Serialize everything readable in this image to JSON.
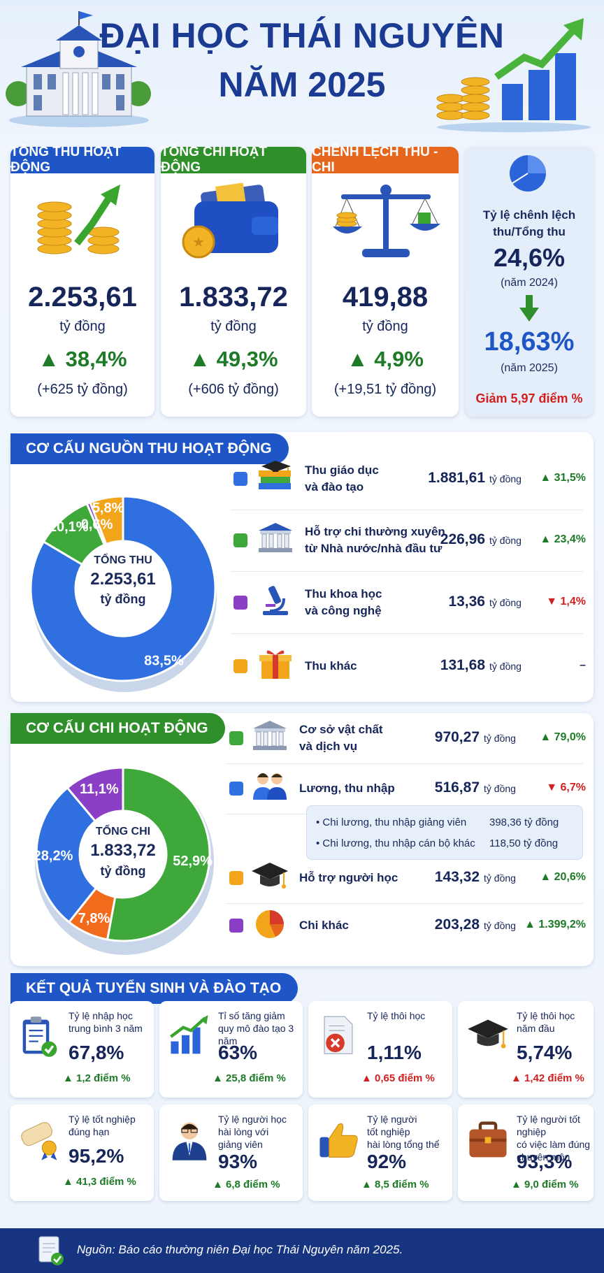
{
  "header": {
    "title_line1": "ĐẠI HỌC THÁI NGUYÊN",
    "title_line2": "NĂM 2025"
  },
  "summary": {
    "revenue": {
      "label": "TỔNG THU HOẠT ĐỘNG",
      "value": "2.253,61",
      "unit": "tỷ đồng",
      "change": "▲ 38,4%",
      "delta": "(+625 tỷ đồng)",
      "color": "#1f56c7"
    },
    "expense": {
      "label": "TỔNG CHI HOẠT ĐỘNG",
      "value": "1.833,72",
      "unit": "tỷ đồng",
      "change": "▲ 49,3%",
      "delta": "(+606 tỷ đồng)",
      "color": "#2f8f2a"
    },
    "balance": {
      "label": "CHÊNH LỆCH THU - CHI",
      "value": "419,88",
      "unit": "tỷ đồng",
      "change": "▲ 4,9%",
      "delta": "(+19,51 tỷ đồng)",
      "color": "#e5661c"
    },
    "ratio": {
      "title": "Tỷ lệ chênh lệch thu/Tổng thu",
      "value_2024": "24,6%",
      "year_2024": "(năm 2024)",
      "value_2025": "18,63%",
      "year_2025": "(năm 2025)",
      "note": "Giảm 5,97 điểm %"
    }
  },
  "revenue_structure": {
    "section_title": "CƠ CẤU NGUỒN THU HOẠT ĐỘNG",
    "center_label": "TỔNG THU",
    "center_value": "2.253,61",
    "center_unit": "tỷ đồng",
    "unit": "tỷ đồng",
    "items": [
      {
        "label1": "Thu giáo dục",
        "label2": "và đào tạo",
        "value": "1.881,61",
        "change": "▲ 31,5%",
        "dir": "up",
        "color": "#2f6fe0",
        "icon": "books-graduation-icon"
      },
      {
        "label1": "Hỗ trợ chi thường xuyên",
        "label2": "từ Nhà nước/nhà đầu tư",
        "value": "226,96",
        "change": "▲ 23,4%",
        "dir": "up",
        "color": "#3ea83a",
        "icon": "government-building-icon"
      },
      {
        "label1": "Thu khoa học",
        "label2": "và công nghệ",
        "value": "13,36",
        "change": "▼ 1,4%",
        "dir": "dn",
        "color": "#8a3fc6",
        "icon": "microscope-icon"
      },
      {
        "label1": "Thu khác",
        "label2": "",
        "value": "131,68",
        "change": "–",
        "dir": "flat",
        "color": "#f2a51b",
        "icon": "gift-box-icon"
      }
    ]
  },
  "expense_structure": {
    "section_title": "CƠ CẤU CHI HOẠT ĐỘNG",
    "center_label": "TỔNG CHI",
    "center_value": "1.833,72",
    "center_unit": "tỷ đồng",
    "unit": "tỷ đồng",
    "items": [
      {
        "label1": "Cơ sở vật chất",
        "label2": "và dịch vụ",
        "value": "970,27",
        "change": "▲ 79,0%",
        "dir": "up",
        "color": "#3ea83a",
        "icon": "building-icon"
      },
      {
        "label1": "Lương, thu nhập",
        "label2": "",
        "value": "516,87",
        "change": "▼ 6,7%",
        "dir": "dn",
        "color": "#2f6fe0",
        "icon": "staff-people-icon"
      },
      {
        "label1": "Hỗ trợ người học",
        "label2": "",
        "value": "143,32",
        "change": "▲ 20,6%",
        "dir": "up",
        "color": "#f2a51b",
        "icon": "graduation-cap-icon"
      },
      {
        "label1": "Chi khác",
        "label2": "",
        "value": "203,28",
        "change": "▲ 1.399,2%",
        "dir": "up",
        "color": "#8a3fc6",
        "icon": "pie-chart-icon"
      }
    ],
    "salary_breakdown": [
      {
        "label": "Chi lương, thu nhập giảng viên",
        "value": "398,36 tỷ đồng"
      },
      {
        "label": "Chi lương, thu nhập cán bộ khác",
        "value": "118,50 tỷ đồng"
      }
    ]
  },
  "chart_data": [
    {
      "type": "pie",
      "categories": [
        "Thu giáo dục và đào tạo",
        "Hỗ trợ chi thường xuyên từ Nhà nước/nhà đầu tư",
        "Thu khoa học và công nghệ",
        "Thu khác"
      ],
      "values": [
        83.5,
        10.1,
        0.6,
        5.8
      ],
      "labels": [
        "83,5%",
        "10,1%",
        "0,6%",
        "5,8%"
      ],
      "colors": [
        "#2f6fe0",
        "#3ea83a",
        "#8a3fc6",
        "#f2a51b"
      ]
    },
    {
      "type": "pie",
      "categories": [
        "Cơ sở vật chất và dịch vụ",
        "Chi khác",
        "Lương, thu nhập",
        "Hỗ trợ người học"
      ],
      "values": [
        52.9,
        11.1,
        28.2,
        7.8
      ],
      "labels": [
        "52,9%",
        "11,1%",
        "28,2%",
        "7,8%"
      ],
      "colors": [
        "#3ea83a",
        "#8a3fc6",
        "#2f6fe0",
        "#f26a1b"
      ]
    }
  ],
  "training": {
    "section_title": "KẾT QUẢ TUYỂN SINH VÀ ĐÀO TẠO",
    "cards": [
      {
        "l1": "Tỷ lệ nhập học",
        "l2": "trung bình 3 năm",
        "l3": "",
        "value": "67,8%",
        "delta": "▲ 1,2 điểm %",
        "dir": "up",
        "icon": "clipboard-check-icon"
      },
      {
        "l1": "Tỉ số tăng giảm",
        "l2": "quy mô đào tạo 3 năm",
        "l3": "",
        "value": "63%",
        "delta": "▲ 25,8 điểm %",
        "dir": "up",
        "icon": "growth-chart-icon"
      },
      {
        "l1": "Tỷ lệ thôi học",
        "l2": "",
        "l3": "",
        "value": "1,11%",
        "delta": "▲ 0,65 điểm %",
        "dir": "dn",
        "icon": "document-x-icon"
      },
      {
        "l1": "Tỷ lệ thôi học",
        "l2": "năm đầu",
        "l3": "",
        "value": "5,74%",
        "delta": "▲ 1,42 điểm %",
        "dir": "dn",
        "icon": "graduation-cap-icon"
      },
      {
        "l1": "Tỷ lệ tốt nghiệp",
        "l2": "đúng hạn",
        "l3": "",
        "value": "95,2%",
        "delta": "▲ 41,3 điểm %",
        "dir": "up",
        "icon": "diploma-icon"
      },
      {
        "l1": "Tỷ lệ người học",
        "l2": "hài lòng với",
        "l3": "giảng viên",
        "value": "93%",
        "delta": "▲ 6,8 điểm %",
        "dir": "up",
        "icon": "teacher-icon"
      },
      {
        "l1": "Tỷ lệ người",
        "l2": "tốt nghiệp",
        "l3": "hài lòng tổng thể",
        "value": "92%",
        "delta": "▲ 8,5 điểm %",
        "dir": "up",
        "icon": "thumbs-up-icon"
      },
      {
        "l1": "Tỷ lệ người tốt nghiệp",
        "l2": "có việc làm đúng",
        "l3": "chuyên môn",
        "value": "93,3%",
        "delta": "▲ 9,0 điểm %",
        "dir": "up",
        "icon": "briefcase-icon"
      }
    ]
  },
  "footer": {
    "source": "Nguồn: Báo cáo thường niên Đại học Thái Nguyên năm 2025."
  }
}
